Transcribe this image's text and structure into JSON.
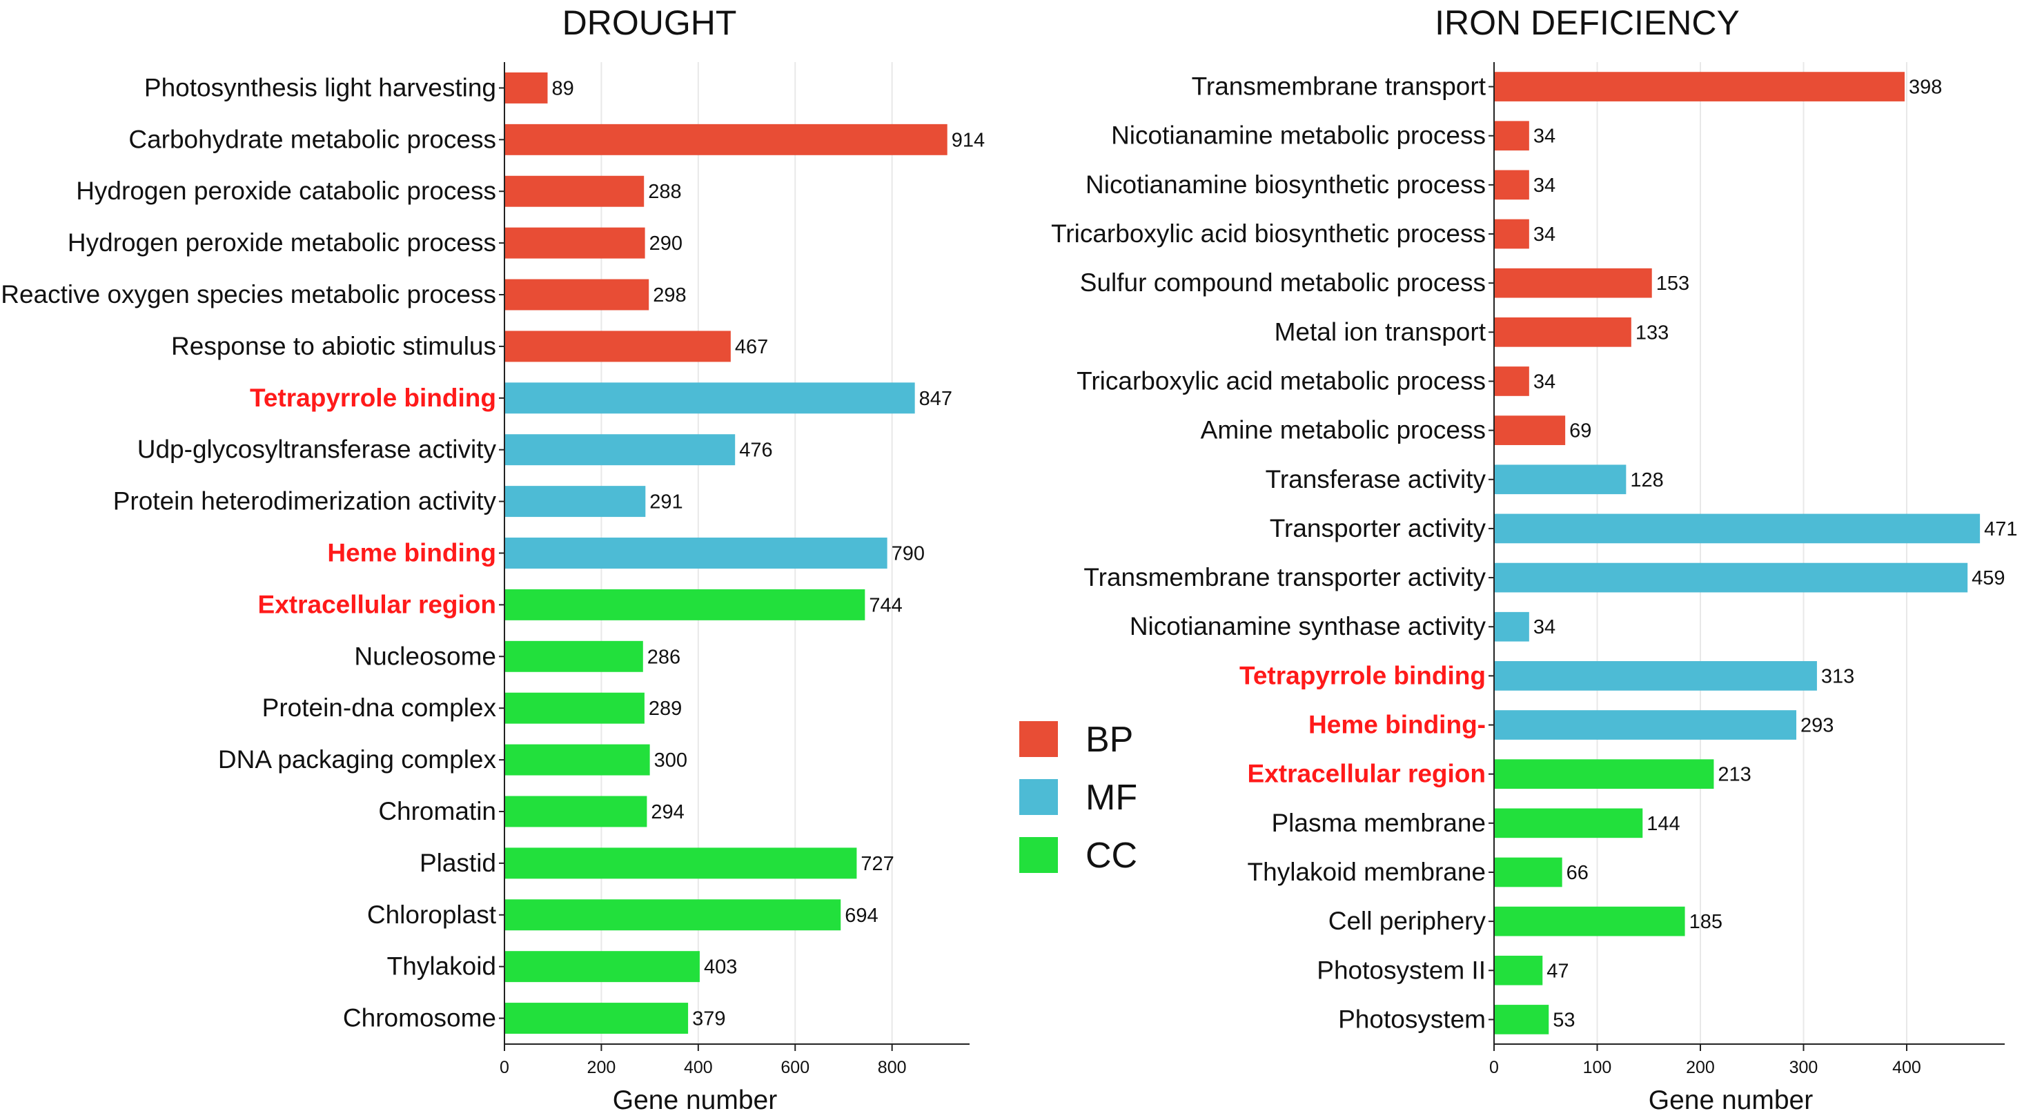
{
  "colors": {
    "BP": "#e84d35",
    "MF": "#4dbbd5",
    "CC": "#22e03c",
    "highlight": "#ff1a1a"
  },
  "legend": [
    {
      "key": "BP",
      "label": "BP"
    },
    {
      "key": "MF",
      "label": "MF"
    },
    {
      "key": "CC",
      "label": "CC"
    }
  ],
  "chart_data": [
    {
      "type": "bar",
      "orientation": "horizontal",
      "title": "DROUGHT",
      "xlabel": "Gene number",
      "ylabel": "",
      "xlim": [
        0,
        960
      ],
      "xticks": [
        0,
        200,
        400,
        600,
        800
      ],
      "xtick_labels": [
        "0",
        "200",
        "400",
        "600",
        "800"
      ],
      "grid": true,
      "categories": [
        "Photosynthesis light harvesting",
        "Carbohydrate metabolic process",
        "Hydrogen peroxide catabolic process",
        "Hydrogen peroxide metabolic process",
        "Reactive oxygen species metabolic process",
        "Response to abiotic stimulus",
        "Tetrapyrrole binding",
        "Udp-glycosyltransferase activity",
        "Protein heterodimerization activity",
        "Heme binding",
        "Extracellular region",
        "Nucleosome",
        "Protein-dna complex",
        "DNA packaging complex",
        "Chromatin",
        "Plastid",
        "Chloroplast",
        "Thylakoid",
        "Chromosome"
      ],
      "values": [
        89,
        914,
        288,
        290,
        298,
        467,
        847,
        476,
        291,
        790,
        744,
        286,
        289,
        300,
        294,
        727,
        694,
        403,
        379
      ],
      "value_labels": [
        "89",
        "914",
        "288",
        "290",
        "298",
        "467",
        "847",
        "476",
        "291",
        "790",
        "744",
        "286",
        "289",
        "300",
        "294",
        "727",
        "694",
        "403",
        "379"
      ],
      "groups": [
        "BP",
        "BP",
        "BP",
        "BP",
        "BP",
        "BP",
        "MF",
        "MF",
        "MF",
        "MF",
        "CC",
        "CC",
        "CC",
        "CC",
        "CC",
        "CC",
        "CC",
        "CC",
        "CC"
      ],
      "highlighted": [
        "Tetrapyrrole binding",
        "Heme binding",
        "Extracellular region"
      ]
    },
    {
      "type": "bar",
      "orientation": "horizontal",
      "title": "IRON DEFICIENCY",
      "xlabel": "Gene number",
      "ylabel": "",
      "xlim": [
        0,
        495
      ],
      "xticks": [
        0,
        100,
        200,
        300,
        400
      ],
      "xtick_labels": [
        "0",
        "100",
        "200",
        "300",
        "400"
      ],
      "grid": true,
      "categories": [
        "Transmembrane transport",
        "Nicotianamine metabolic process",
        "Nicotianamine biosynthetic process",
        "Tricarboxylic acid biosynthetic process",
        "Sulfur compound metabolic process",
        "Metal ion transport",
        "Tricarboxylic acid metabolic process",
        "Amine metabolic process",
        "Transferase activity",
        "Transporter activity",
        "Transmembrane transporter activity",
        "Nicotianamine synthase activity",
        "Tetrapyrrole binding",
        "Heme binding-",
        "Extracellular region",
        "Plasma membrane",
        "Thylakoid membrane",
        "Cell periphery",
        "Photosystem II",
        "Photosystem"
      ],
      "values": [
        398,
        34,
        34,
        34,
        153,
        133,
        34,
        69,
        128,
        471,
        459,
        34,
        313,
        293,
        213,
        144,
        66,
        185,
        47,
        53
      ],
      "value_labels": [
        "398",
        "34",
        "34",
        "34",
        "153",
        "133",
        "34",
        "69",
        "128",
        "471",
        "459",
        "34",
        "313",
        "293",
        "213",
        "144",
        "66",
        "185",
        "47",
        "53"
      ],
      "groups": [
        "BP",
        "BP",
        "BP",
        "BP",
        "BP",
        "BP",
        "BP",
        "BP",
        "MF",
        "MF",
        "MF",
        "MF",
        "MF",
        "MF",
        "CC",
        "CC",
        "CC",
        "CC",
        "CC",
        "CC"
      ],
      "highlighted": [
        "Tetrapyrrole binding",
        "Heme binding-",
        "Extracellular region"
      ]
    }
  ]
}
